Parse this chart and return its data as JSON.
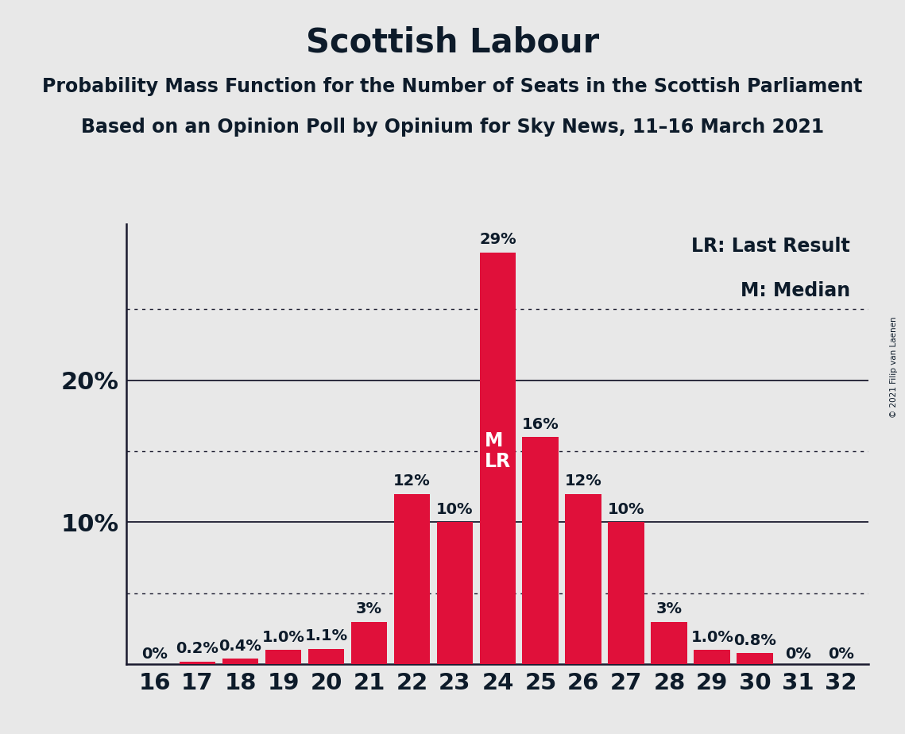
{
  "title": "Scottish Labour",
  "subtitle1": "Probability Mass Function for the Number of Seats in the Scottish Parliament",
  "subtitle2": "Based on an Opinion Poll by Opinium for Sky News, 11–16 March 2021",
  "copyright": "© 2021 Filip van Laenen",
  "seats": [
    16,
    17,
    18,
    19,
    20,
    21,
    22,
    23,
    24,
    25,
    26,
    27,
    28,
    29,
    30,
    31,
    32
  ],
  "probabilities": [
    0.0,
    0.2,
    0.4,
    1.0,
    1.1,
    3.0,
    12.0,
    10.0,
    29.0,
    16.0,
    12.0,
    10.0,
    3.0,
    1.0,
    0.8,
    0.0,
    0.0
  ],
  "labels": [
    "0%",
    "0.2%",
    "0.4%",
    "1.0%",
    "1.1%",
    "3%",
    "12%",
    "10%",
    "29%",
    "16%",
    "12%",
    "10%",
    "3%",
    "1.0%",
    "0.8%",
    "0%",
    "0%"
  ],
  "bar_color": "#e0103a",
  "background_color": "#e8e8e8",
  "median_seat": 24,
  "last_result_seat": 24,
  "legend_lr": "LR: Last Result",
  "legend_m": "M: Median",
  "title_fontsize": 30,
  "subtitle_fontsize": 17,
  "bar_label_fontsize": 14,
  "axis_tick_fontsize": 21,
  "ytick_fontsize": 22,
  "ml_fontsize": 17,
  "legend_fontsize": 17,
  "copyright_fontsize": 7.5
}
